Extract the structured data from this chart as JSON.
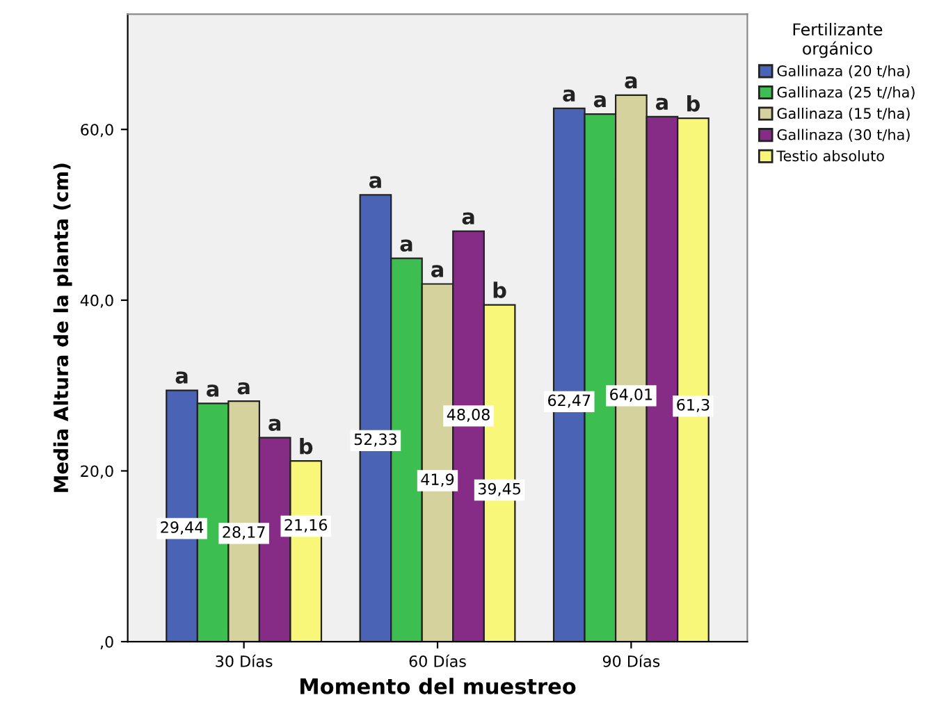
{
  "chart_data": {
    "type": "bar",
    "xlabel": "Momento del muestreo",
    "ylabel": "Media Altura de la planta (cm)",
    "legend_title": "Fertilizante\norgánico",
    "legend": "right",
    "grid": false,
    "categories": [
      "30 Días",
      "60 Días",
      "90 Días"
    ],
    "ylim": [
      0,
      73.5
    ],
    "yticks": [
      {
        "value": 0,
        "label": ",0"
      },
      {
        "value": 20,
        "label": "20,0"
      },
      {
        "value": 40,
        "label": "40,0"
      },
      {
        "value": 60,
        "label": "60,0"
      }
    ],
    "series": [
      {
        "name": "Gallinaza (20 t/ha)",
        "color": "#4a63b5",
        "values": [
          29.44,
          52.33,
          62.47
        ],
        "value_labels": [
          "29,44",
          "52,33",
          "62,47"
        ]
      },
      {
        "name": "Gallinaza (25 t//ha)",
        "color": "#3cbf50",
        "values": [
          27.9,
          44.9,
          61.8
        ],
        "value_labels": [
          null,
          null,
          null
        ]
      },
      {
        "name": "Gallinaza (15 t/ha)",
        "color": "#d6d29e",
        "values": [
          28.17,
          41.9,
          64.01
        ],
        "value_labels": [
          "28,17",
          "41,9",
          "64,01"
        ]
      },
      {
        "name": "Gallinaza (30 t/ha)",
        "color": "#862c86",
        "values": [
          23.9,
          48.08,
          61.5
        ],
        "value_labels": [
          null,
          "48,08",
          null
        ]
      },
      {
        "name": "Testio absoluto",
        "color": "#f9f77a",
        "values": [
          21.16,
          39.45,
          61.3
        ],
        "value_labels": [
          "21,16",
          "39,45",
          "61,3"
        ]
      }
    ],
    "annotations": [
      "a",
      "a",
      "a",
      "a",
      "b",
      "a",
      "a",
      "a",
      "a",
      "b",
      "a",
      "a",
      "a",
      "a",
      "b"
    ]
  }
}
